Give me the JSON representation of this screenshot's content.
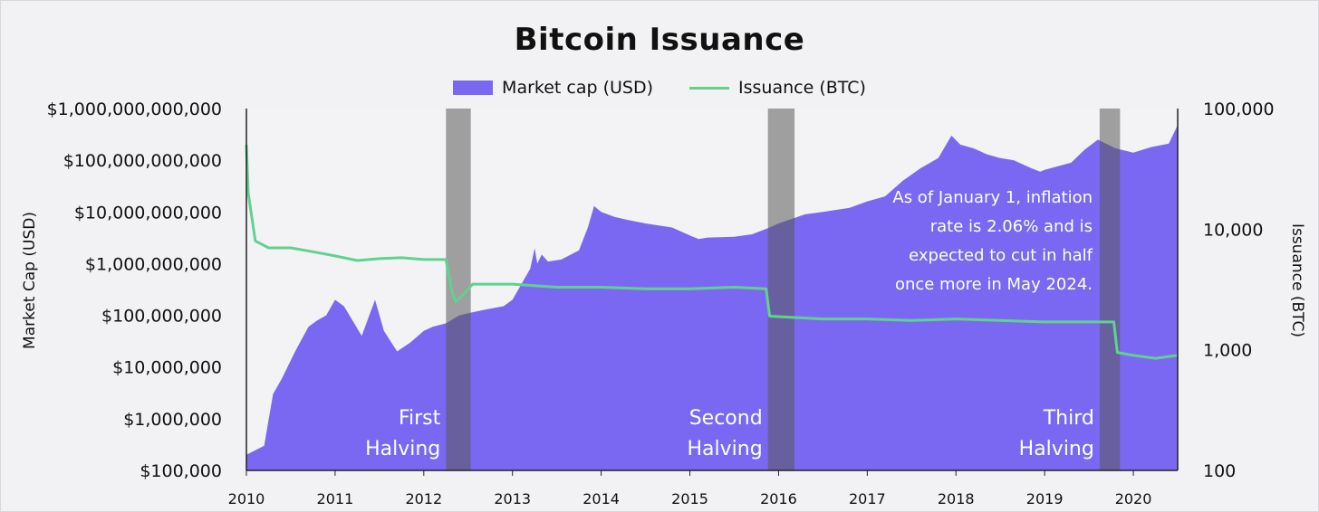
{
  "chart_data": {
    "type": "area",
    "title": "Bitcoin Issuance",
    "ylabel": "Market Cap (USD)",
    "y2label": "Issuance (BTC)",
    "legend": [
      "Market cap (USD)",
      "Issuance (BTC)"
    ],
    "legend_position": "top-center",
    "ylim": [
      100000,
      1000000000000
    ],
    "yscale": "log",
    "y2lim": [
      100,
      100000
    ],
    "y2scale": "log",
    "xlim": [
      2010.0,
      2020.5
    ],
    "x_ticks": [
      "2010",
      "2011",
      "2012",
      "2013",
      "2014",
      "2015",
      "2016",
      "2017",
      "2018",
      "2019",
      "2020"
    ],
    "y_ticks": [
      "$100,000",
      "$1,000,000",
      "$10,000,000",
      "$100,000,000",
      "$1,000,000,000",
      "$10,000,000,000",
      "$100,000,000,000",
      "$1,000,000,000,000"
    ],
    "y2_ticks": [
      "100",
      "1,000",
      "10,000",
      "100,000"
    ],
    "halvings": [
      {
        "label_line1": "First",
        "label_line2": "Halving",
        "start": 2012.25,
        "end": 2012.53
      },
      {
        "label_line1": "Second",
        "label_line2": "Halving",
        "start": 2015.88,
        "end": 2016.18
      },
      {
        "label_line1": "Third",
        "label_line2": "Halving",
        "start": 2019.62,
        "end": 2019.85
      }
    ],
    "annotation": [
      "As of January 1, inflation",
      "rate is 2.06% and is",
      "expected to cut in half",
      "once more in May 2024."
    ],
    "series": [
      {
        "name": "Market cap (USD)",
        "color": "#7b68f2",
        "x": [
          2010.0,
          2010.2,
          2010.3,
          2010.4,
          2010.55,
          2010.7,
          2010.8,
          2010.9,
          2011.0,
          2011.1,
          2011.3,
          2011.45,
          2011.55,
          2011.7,
          2011.85,
          2012.0,
          2012.1,
          2012.25,
          2012.4,
          2012.5,
          2012.7,
          2012.9,
          2013.0,
          2013.2,
          2013.25,
          2013.28,
          2013.33,
          2013.4,
          2013.55,
          2013.75,
          2013.85,
          2013.92,
          2014.0,
          2014.15,
          2014.3,
          2014.5,
          2014.8,
          2015.0,
          2015.1,
          2015.2,
          2015.5,
          2015.7,
          2015.9,
          2016.0,
          2016.3,
          2016.5,
          2016.8,
          2017.0,
          2017.2,
          2017.4,
          2017.6,
          2017.8,
          2017.95,
          2018.05,
          2018.2,
          2018.35,
          2018.5,
          2018.65,
          2018.85,
          2018.95,
          2019.0,
          2019.3,
          2019.45,
          2019.6,
          2019.8,
          2020.0,
          2020.2,
          2020.4,
          2020.5
        ],
        "values": [
          200000,
          300000,
          3000000,
          6000000,
          20000000,
          60000000,
          80000000,
          100000000,
          200000000,
          150000000,
          40000000,
          200000000,
          50000000,
          20000000,
          30000000,
          50000000,
          60000000,
          70000000,
          100000000,
          110000000,
          130000000,
          150000000,
          200000000,
          800000000,
          2000000000,
          1000000000,
          1500000000,
          1100000000,
          1200000000,
          1800000000,
          5000000000,
          13000000000,
          10000000000,
          8000000000,
          7000000000,
          6000000000,
          5000000000,
          3500000000,
          3000000000,
          3200000000,
          3300000000,
          3700000000,
          5000000000,
          6000000000,
          9000000000,
          10000000000,
          12000000000,
          16000000000,
          20000000000,
          40000000000,
          70000000000,
          110000000000,
          300000000000,
          200000000000,
          170000000000,
          130000000000,
          110000000000,
          100000000000,
          70000000000,
          60000000000,
          65000000000,
          90000000000,
          160000000000,
          250000000000,
          170000000000,
          140000000000,
          180000000000,
          210000000000,
          480000000000
        ]
      },
      {
        "name": "Issuance (BTC)",
        "color": "#5fd38d",
        "x": [
          2010.0,
          2010.02,
          2010.1,
          2010.25,
          2010.5,
          2010.75,
          2011.0,
          2011.25,
          2011.5,
          2011.75,
          2012.0,
          2012.25,
          2012.32,
          2012.36,
          2012.45,
          2012.55,
          2013.0,
          2013.5,
          2014.0,
          2014.5,
          2015.0,
          2015.5,
          2015.86,
          2015.9,
          2016.5,
          2017.0,
          2017.5,
          2018.0,
          2018.5,
          2019.0,
          2019.5,
          2019.78,
          2019.82,
          2020.0,
          2020.25,
          2020.5
        ],
        "values": [
          50000,
          20000,
          8000,
          7000,
          7000,
          6500,
          6000,
          5500,
          5700,
          5800,
          5600,
          5600,
          3000,
          2500,
          2900,
          3500,
          3500,
          3300,
          3300,
          3200,
          3200,
          3300,
          3200,
          1900,
          1800,
          1800,
          1750,
          1800,
          1750,
          1700,
          1700,
          1700,
          950,
          900,
          850,
          900
        ]
      }
    ]
  }
}
